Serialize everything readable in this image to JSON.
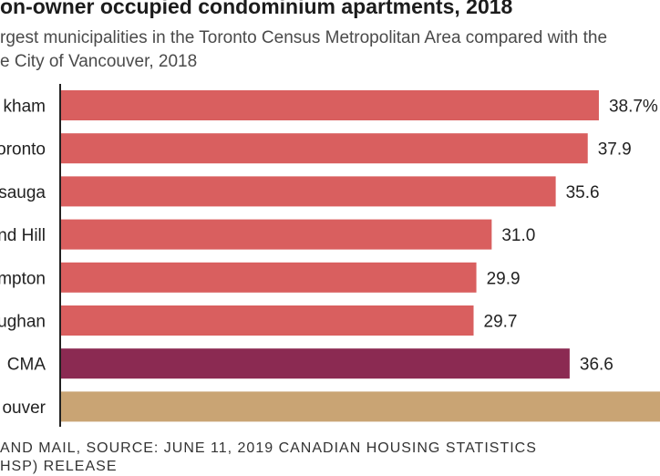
{
  "title": "on-owner occupied condominium apartments, 2018",
  "subtitle_lines": [
    "rgest municipalities in the Toronto Census Metropolitan Area compared with the",
    "e City of Vancouver, 2018"
  ],
  "source_lines": [
    "AND MAIL, SOURCE: JUNE 11, 2019 CANADIAN HOUSING STATISTICS",
    "HSP) RELEASE"
  ],
  "colors": {
    "municipality": "#d95f5f",
    "cma": "#8b2a52",
    "vancouver": "#c9a474",
    "axis": "#222222"
  },
  "chart_data": {
    "type": "bar",
    "orientation": "horizontal",
    "xlim": [
      0,
      45
    ],
    "grid": false,
    "categories": [
      "kham",
      "oronto",
      "sauga",
      "nd Hill",
      "mpton",
      "ughan",
      "CMA",
      "ouver"
    ],
    "values": [
      38.7,
      37.9,
      35.6,
      31.0,
      29.9,
      29.7,
      36.6,
      null
    ],
    "value_labels": [
      "38.7%",
      "37.9",
      "35.6",
      "31.0",
      "29.9",
      "29.7",
      "36.6",
      ""
    ],
    "bar_groups": [
      "municipality",
      "municipality",
      "municipality",
      "municipality",
      "municipality",
      "municipality",
      "cma",
      "vancouver"
    ]
  }
}
